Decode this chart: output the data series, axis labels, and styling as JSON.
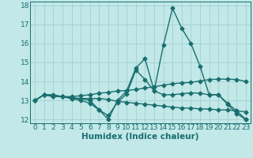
{
  "xlabel": "Humidex (Indice chaleur)",
  "background_color": "#c2e8e8",
  "grid_color": "#a8d4d4",
  "line_color": "#1a6e6e",
  "xlim": [
    -0.5,
    23.5
  ],
  "ylim": [
    11.8,
    18.2
  ],
  "yticks": [
    12,
    13,
    14,
    15,
    16,
    17,
    18
  ],
  "xticks": [
    0,
    1,
    2,
    3,
    4,
    5,
    6,
    7,
    8,
    9,
    10,
    11,
    12,
    13,
    14,
    15,
    16,
    17,
    18,
    19,
    20,
    21,
    22,
    23
  ],
  "series": [
    [
      13.0,
      13.3,
      13.2,
      13.2,
      13.1,
      13.1,
      13.0,
      12.5,
      12.0,
      13.0,
      13.5,
      14.7,
      15.2,
      13.5,
      15.9,
      17.85,
      16.8,
      16.0,
      14.8,
      13.3,
      13.3,
      12.8,
      12.3,
      12.0
    ],
    [
      13.0,
      13.3,
      13.25,
      13.2,
      13.15,
      13.1,
      13.1,
      13.1,
      13.05,
      12.95,
      12.9,
      12.85,
      12.8,
      12.75,
      12.7,
      12.65,
      12.6,
      12.6,
      12.55,
      12.55,
      12.5,
      12.5,
      12.45,
      12.4
    ],
    [
      13.0,
      13.3,
      13.3,
      13.2,
      13.2,
      13.25,
      13.3,
      13.38,
      13.42,
      13.5,
      13.52,
      13.58,
      13.65,
      13.72,
      13.8,
      13.88,
      13.92,
      13.95,
      14.02,
      14.1,
      14.12,
      14.12,
      14.1,
      14.0
    ],
    [
      13.0,
      13.3,
      13.2,
      13.2,
      13.1,
      13.0,
      12.85,
      12.5,
      12.2,
      12.9,
      13.35,
      14.6,
      14.1,
      13.5,
      13.3,
      13.3,
      13.35,
      13.4,
      13.38,
      13.3,
      13.3,
      12.85,
      12.45,
      12.0
    ]
  ],
  "marker": "D",
  "markersize": 2.5,
  "linewidth": 1.0,
  "fontsize_xlabel": 7.5,
  "fontsize_ticks": 6.5
}
